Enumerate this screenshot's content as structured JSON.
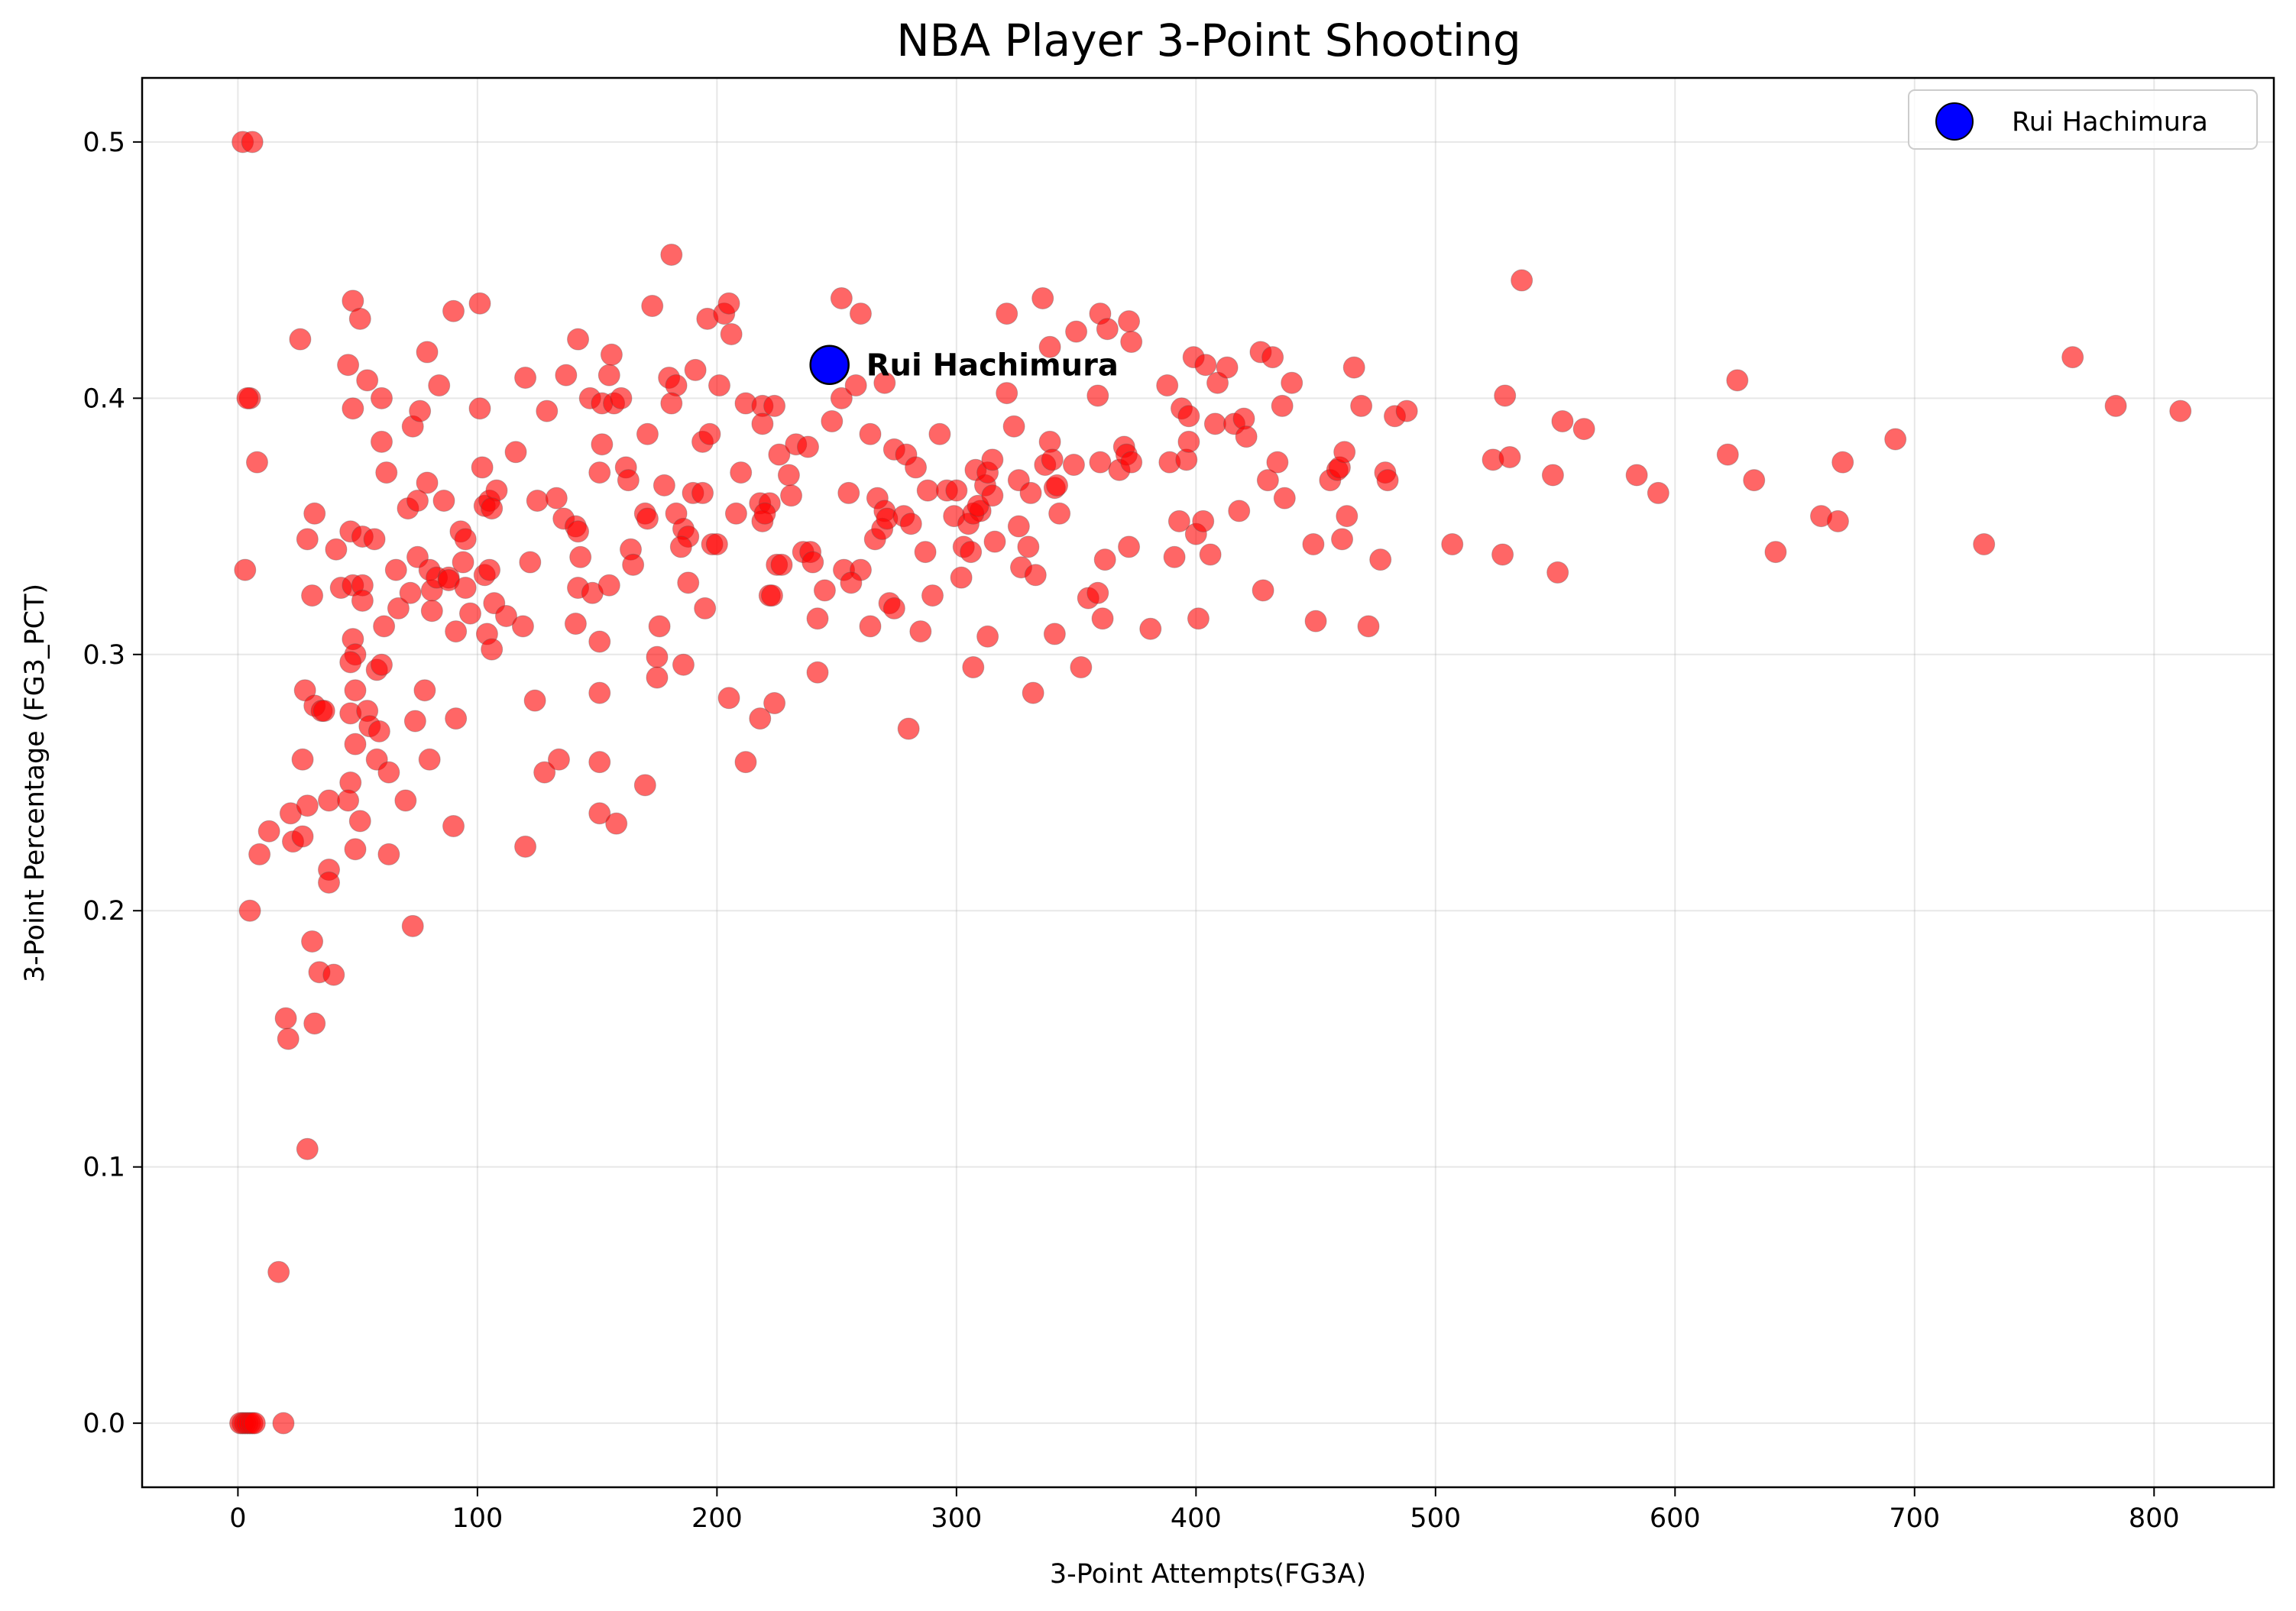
{
  "chart_data": {
    "type": "scatter",
    "title": "NBA Player 3-Point Shooting",
    "xlabel": "3-Point Attempts(FG3A)",
    "ylabel": "3-Point Percentage (FG3_PCT)",
    "xlim": [
      -40,
      850
    ],
    "ylim": [
      -0.025,
      0.525
    ],
    "x_ticks": [
      0,
      100,
      200,
      300,
      400,
      500,
      600,
      700,
      800
    ],
    "y_ticks": [
      0.0,
      0.1,
      0.2,
      0.3,
      0.4,
      0.5
    ],
    "x_tick_labels": [
      "0",
      "100",
      "200",
      "300",
      "400",
      "500",
      "600",
      "700",
      "800"
    ],
    "y_tick_labels": [
      "0.0",
      "0.1",
      "0.2",
      "0.3",
      "0.4",
      "0.5"
    ],
    "grid": true,
    "legend_position": "top-right",
    "colors": {
      "players": "#ff0000",
      "highlight": "#0000ff",
      "highlight_edge": "#000000"
    },
    "highlight": {
      "name": "Rui Hachimura",
      "x": 247,
      "y": 0.413,
      "annotation": "Rui Hachimura"
    },
    "legend": [
      {
        "label": "Rui Hachimura"
      }
    ],
    "points": [
      [
        2,
        0.5
      ],
      [
        6,
        0.5
      ],
      [
        5,
        0.4
      ],
      [
        4,
        0.4
      ],
      [
        8,
        0.375
      ],
      [
        3,
        0.333
      ],
      [
        5,
        0.2
      ],
      [
        9,
        0.222
      ],
      [
        13,
        0.231
      ],
      [
        1,
        0
      ],
      [
        2,
        0
      ],
      [
        3,
        0
      ],
      [
        4,
        0
      ],
      [
        5,
        0
      ],
      [
        6,
        0
      ],
      [
        7,
        0
      ],
      [
        19,
        0
      ],
      [
        17,
        0.059
      ],
      [
        20,
        0.158
      ],
      [
        21,
        0.15
      ],
      [
        29,
        0.107
      ],
      [
        32,
        0.156
      ],
      [
        31,
        0.188
      ],
      [
        34,
        0.176
      ],
      [
        40,
        0.175
      ],
      [
        38,
        0.216
      ],
      [
        38,
        0.211
      ],
      [
        22,
        0.238
      ],
      [
        23,
        0.227
      ],
      [
        27,
        0.229
      ],
      [
        29,
        0.241
      ],
      [
        27,
        0.259
      ],
      [
        28,
        0.286
      ],
      [
        32,
        0.28
      ],
      [
        35,
        0.278
      ],
      [
        36,
        0.278
      ],
      [
        38,
        0.243
      ],
      [
        31,
        0.323
      ],
      [
        29,
        0.345
      ],
      [
        32,
        0.355
      ],
      [
        41,
        0.341
      ],
      [
        26,
        0.423
      ],
      [
        46,
        0.413
      ],
      [
        48,
        0.438
      ],
      [
        51,
        0.431
      ],
      [
        48,
        0.396
      ],
      [
        54,
        0.407
      ],
      [
        60,
        0.4
      ],
      [
        60,
        0.383
      ],
      [
        62,
        0.371
      ],
      [
        47,
        0.348
      ],
      [
        52,
        0.346
      ],
      [
        57,
        0.345
      ],
      [
        43,
        0.326
      ],
      [
        48,
        0.327
      ],
      [
        52,
        0.327
      ],
      [
        52,
        0.321
      ],
      [
        61,
        0.311
      ],
      [
        48,
        0.306
      ],
      [
        49,
        0.3
      ],
      [
        47,
        0.297
      ],
      [
        58,
        0.294
      ],
      [
        60,
        0.296
      ],
      [
        49,
        0.286
      ],
      [
        47,
        0.277
      ],
      [
        54,
        0.278
      ],
      [
        55,
        0.272
      ],
      [
        59,
        0.27
      ],
      [
        49,
        0.265
      ],
      [
        58,
        0.259
      ],
      [
        63,
        0.254
      ],
      [
        47,
        0.25
      ],
      [
        46,
        0.243
      ],
      [
        51,
        0.235
      ],
      [
        49,
        0.224
      ],
      [
        63,
        0.222
      ],
      [
        66,
        0.333
      ],
      [
        67,
        0.318
      ],
      [
        71,
        0.357
      ],
      [
        72,
        0.324
      ],
      [
        75,
        0.338
      ],
      [
        73,
        0.389
      ],
      [
        76,
        0.395
      ],
      [
        79,
        0.418
      ],
      [
        84,
        0.405
      ],
      [
        79,
        0.367
      ],
      [
        75,
        0.36
      ],
      [
        86,
        0.36
      ],
      [
        80,
        0.333
      ],
      [
        81,
        0.325
      ],
      [
        81,
        0.317
      ],
      [
        83,
        0.33
      ],
      [
        88,
        0.33
      ],
      [
        88,
        0.329
      ],
      [
        78,
        0.286
      ],
      [
        74,
        0.274
      ],
      [
        70,
        0.243
      ],
      [
        80,
        0.259
      ],
      [
        73,
        0.194
      ],
      [
        90,
        0.434
      ],
      [
        101,
        0.437
      ],
      [
        101,
        0.396
      ],
      [
        102,
        0.373
      ],
      [
        103,
        0.358
      ],
      [
        105,
        0.36
      ],
      [
        108,
        0.364
      ],
      [
        106,
        0.357
      ],
      [
        93,
        0.348
      ],
      [
        95,
        0.345
      ],
      [
        94,
        0.336
      ],
      [
        91,
        0.309
      ],
      [
        95,
        0.326
      ],
      [
        97,
        0.316
      ],
      [
        103,
        0.331
      ],
      [
        105,
        0.333
      ],
      [
        107,
        0.32
      ],
      [
        104,
        0.308
      ],
      [
        106,
        0.302
      ],
      [
        112,
        0.315
      ],
      [
        91,
        0.275
      ],
      [
        90,
        0.233
      ],
      [
        116,
        0.379
      ],
      [
        120,
        0.408
      ],
      [
        125,
        0.36
      ],
      [
        122,
        0.336
      ],
      [
        119,
        0.311
      ],
      [
        124,
        0.282
      ],
      [
        120,
        0.225
      ],
      [
        128,
        0.254
      ],
      [
        134,
        0.259
      ],
      [
        129,
        0.395
      ],
      [
        137,
        0.409
      ],
      [
        142,
        0.423
      ],
      [
        133,
        0.361
      ],
      [
        136,
        0.353
      ],
      [
        141,
        0.35
      ],
      [
        142,
        0.348
      ],
      [
        143,
        0.338
      ],
      [
        142,
        0.326
      ],
      [
        141,
        0.312
      ],
      [
        148,
        0.324
      ],
      [
        147,
        0.4
      ],
      [
        152,
        0.398
      ],
      [
        155,
        0.409
      ],
      [
        156,
        0.417
      ],
      [
        157,
        0.398
      ],
      [
        160,
        0.4
      ],
      [
        152,
        0.382
      ],
      [
        162,
        0.373
      ],
      [
        151,
        0.371
      ],
      [
        163,
        0.368
      ],
      [
        155,
        0.327
      ],
      [
        151,
        0.305
      ],
      [
        151,
        0.285
      ],
      [
        151,
        0.258
      ],
      [
        151,
        0.238
      ],
      [
        158,
        0.234
      ],
      [
        164,
        0.341
      ],
      [
        165,
        0.335
      ],
      [
        170,
        0.355
      ],
      [
        171,
        0.353
      ],
      [
        171,
        0.386
      ],
      [
        173,
        0.436
      ],
      [
        181,
        0.456
      ],
      [
        180,
        0.408
      ],
      [
        183,
        0.405
      ],
      [
        181,
        0.398
      ],
      [
        178,
        0.366
      ],
      [
        183,
        0.355
      ],
      [
        186,
        0.349
      ],
      [
        190,
        0.363
      ],
      [
        188,
        0.346
      ],
      [
        185,
        0.342
      ],
      [
        191,
        0.411
      ],
      [
        194,
        0.383
      ],
      [
        197,
        0.386
      ],
      [
        196,
        0.431
      ],
      [
        203,
        0.433
      ],
      [
        205,
        0.437
      ],
      [
        206,
        0.425
      ],
      [
        201,
        0.405
      ],
      [
        194,
        0.363
      ],
      [
        198,
        0.343
      ],
      [
        200,
        0.343
      ],
      [
        188,
        0.328
      ],
      [
        195,
        0.318
      ],
      [
        176,
        0.311
      ],
      [
        175,
        0.299
      ],
      [
        175,
        0.291
      ],
      [
        186,
        0.296
      ],
      [
        170,
        0.249
      ],
      [
        205,
        0.283
      ],
      [
        212,
        0.258
      ],
      [
        208,
        0.355
      ],
      [
        210,
        0.371
      ],
      [
        212,
        0.398
      ],
      [
        219,
        0.397
      ],
      [
        224,
        0.397
      ],
      [
        219,
        0.39
      ],
      [
        226,
        0.378
      ],
      [
        218,
        0.359
      ],
      [
        222,
        0.359
      ],
      [
        219,
        0.352
      ],
      [
        220,
        0.355
      ],
      [
        225,
        0.335
      ],
      [
        227,
        0.335
      ],
      [
        222,
        0.323
      ],
      [
        223,
        0.323
      ],
      [
        218,
        0.275
      ],
      [
        224,
        0.281
      ],
      [
        230,
        0.37
      ],
      [
        233,
        0.382
      ],
      [
        238,
        0.381
      ],
      [
        231,
        0.362
      ],
      [
        236,
        0.34
      ],
      [
        239,
        0.34
      ],
      [
        240,
        0.336
      ],
      [
        242,
        0.314
      ],
      [
        245,
        0.325
      ],
      [
        242,
        0.293
      ],
      [
        248,
        0.391
      ],
      [
        252,
        0.4
      ],
      [
        252,
        0.439
      ],
      [
        260,
        0.433
      ],
      [
        258,
        0.405
      ],
      [
        255,
        0.363
      ],
      [
        253,
        0.333
      ],
      [
        260,
        0.333
      ],
      [
        256,
        0.328
      ],
      [
        264,
        0.386
      ],
      [
        270,
        0.406
      ],
      [
        267,
        0.361
      ],
      [
        270,
        0.356
      ],
      [
        266,
        0.345
      ],
      [
        269,
        0.349
      ],
      [
        271,
        0.353
      ],
      [
        278,
        0.354
      ],
      [
        264,
        0.311
      ],
      [
        272,
        0.32
      ],
      [
        274,
        0.318
      ],
      [
        280,
        0.271
      ],
      [
        274,
        0.38
      ],
      [
        279,
        0.378
      ],
      [
        283,
        0.373
      ],
      [
        281,
        0.351
      ],
      [
        287,
        0.34
      ],
      [
        288,
        0.364
      ],
      [
        290,
        0.323
      ],
      [
        285,
        0.309
      ],
      [
        293,
        0.386
      ],
      [
        296,
        0.364
      ],
      [
        300,
        0.364
      ],
      [
        299,
        0.354
      ],
      [
        303,
        0.342
      ],
      [
        305,
        0.351
      ],
      [
        306,
        0.34
      ],
      [
        302,
        0.33
      ],
      [
        307,
        0.295
      ],
      [
        308,
        0.372
      ],
      [
        310,
        0.356
      ],
      [
        307,
        0.355
      ],
      [
        309,
        0.358
      ],
      [
        312,
        0.366
      ],
      [
        313,
        0.371
      ],
      [
        315,
        0.376
      ],
      [
        315,
        0.362
      ],
      [
        316,
        0.344
      ],
      [
        313,
        0.307
      ],
      [
        321,
        0.433
      ],
      [
        321,
        0.402
      ],
      [
        324,
        0.389
      ],
      [
        326,
        0.368
      ],
      [
        326,
        0.35
      ],
      [
        327,
        0.334
      ],
      [
        330,
        0.342
      ],
      [
        331,
        0.363
      ],
      [
        333,
        0.331
      ],
      [
        332,
        0.285
      ],
      [
        336,
        0.439
      ],
      [
        337,
        0.374
      ],
      [
        339,
        0.383
      ],
      [
        339,
        0.42
      ],
      [
        340,
        0.376
      ],
      [
        341,
        0.365
      ],
      [
        342,
        0.366
      ],
      [
        343,
        0.355
      ],
      [
        341,
        0.308
      ],
      [
        350,
        0.426
      ],
      [
        349,
        0.374
      ],
      [
        352,
        0.295
      ],
      [
        355,
        0.322
      ],
      [
        359,
        0.324
      ],
      [
        360,
        0.433
      ],
      [
        363,
        0.427
      ],
      [
        359,
        0.401
      ],
      [
        360,
        0.375
      ],
      [
        362,
        0.337
      ],
      [
        361,
        0.314
      ],
      [
        368,
        0.372
      ],
      [
        370,
        0.381
      ],
      [
        371,
        0.378
      ],
      [
        372,
        0.43
      ],
      [
        373,
        0.422
      ],
      [
        373,
        0.375
      ],
      [
        372,
        0.342
      ],
      [
        381,
        0.31
      ],
      [
        388,
        0.405
      ],
      [
        389,
        0.375
      ],
      [
        391,
        0.338
      ],
      [
        393,
        0.352
      ],
      [
        394,
        0.396
      ],
      [
        396,
        0.376
      ],
      [
        397,
        0.393
      ],
      [
        397,
        0.383
      ],
      [
        399,
        0.416
      ],
      [
        400,
        0.347
      ],
      [
        401,
        0.314
      ],
      [
        403,
        0.352
      ],
      [
        404,
        0.413
      ],
      [
        406,
        0.339
      ],
      [
        408,
        0.39
      ],
      [
        409,
        0.406
      ],
      [
        413,
        0.412
      ],
      [
        416,
        0.39
      ],
      [
        418,
        0.356
      ],
      [
        420,
        0.392
      ],
      [
        421,
        0.385
      ],
      [
        427,
        0.418
      ],
      [
        428,
        0.325
      ],
      [
        430,
        0.368
      ],
      [
        432,
        0.416
      ],
      [
        434,
        0.375
      ],
      [
        436,
        0.397
      ],
      [
        437,
        0.361
      ],
      [
        440,
        0.406
      ],
      [
        449,
        0.343
      ],
      [
        450,
        0.313
      ],
      [
        456,
        0.368
      ],
      [
        459,
        0.372
      ],
      [
        460,
        0.373
      ],
      [
        461,
        0.345
      ],
      [
        462,
        0.379
      ],
      [
        463,
        0.354
      ],
      [
        466,
        0.412
      ],
      [
        469,
        0.397
      ],
      [
        472,
        0.311
      ],
      [
        477,
        0.337
      ],
      [
        479,
        0.371
      ],
      [
        480,
        0.368
      ],
      [
        483,
        0.393
      ],
      [
        488,
        0.395
      ],
      [
        507,
        0.343
      ],
      [
        524,
        0.376
      ],
      [
        528,
        0.339
      ],
      [
        529,
        0.401
      ],
      [
        531,
        0.377
      ],
      [
        536,
        0.446
      ],
      [
        549,
        0.37
      ],
      [
        551,
        0.332
      ],
      [
        553,
        0.391
      ],
      [
        562,
        0.388
      ],
      [
        584,
        0.37
      ],
      [
        593,
        0.363
      ],
      [
        622,
        0.378
      ],
      [
        626,
        0.407
      ],
      [
        633,
        0.368
      ],
      [
        642,
        0.34
      ],
      [
        661,
        0.354
      ],
      [
        668,
        0.352
      ],
      [
        670,
        0.375
      ],
      [
        692,
        0.384
      ],
      [
        729,
        0.343
      ],
      [
        766,
        0.416
      ],
      [
        784,
        0.397
      ],
      [
        811,
        0.395
      ]
    ]
  }
}
